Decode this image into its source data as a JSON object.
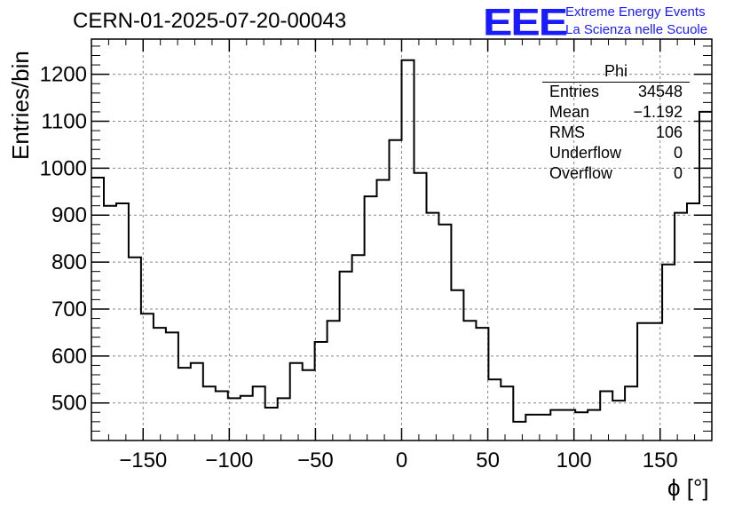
{
  "header": {
    "title": "CERN-01-2025-07-20-00043",
    "logo_text": "EEE",
    "logo_line1": "Extreme Energy Events",
    "logo_line2": "La Scienza nelle Scuole"
  },
  "stats_box": {
    "name": "Phi",
    "rows": [
      {
        "key": "Entries",
        "value": "34548"
      },
      {
        "key": "Mean",
        "value": "−1.192"
      },
      {
        "key": "RMS",
        "value": "106"
      },
      {
        "key": "Underflow",
        "value": "0"
      },
      {
        "key": "Overflow",
        "value": "0"
      }
    ]
  },
  "chart_data": {
    "type": "histogram",
    "title": "CERN-01-2025-07-20-00043",
    "xlabel": "ϕ [°]",
    "ylabel": "Entries/bin",
    "xlim": [
      -180,
      180
    ],
    "ylim": [
      420,
      1275
    ],
    "bin_width": 7.2,
    "x_ticks": [
      -150,
      -100,
      -50,
      0,
      50,
      100,
      150
    ],
    "x_tick_labels": [
      "−150",
      "−100",
      "−50",
      "0",
      "50",
      "100",
      "150"
    ],
    "y_ticks": [
      500,
      600,
      700,
      800,
      900,
      1000,
      1100,
      1200
    ],
    "y_tick_labels": [
      "500",
      "600",
      "700",
      "800",
      "900",
      "1000",
      "1100",
      "1200"
    ],
    "grid": true,
    "values": [
      980,
      920,
      925,
      810,
      690,
      660,
      650,
      575,
      585,
      535,
      525,
      510,
      515,
      535,
      490,
      510,
      585,
      570,
      630,
      675,
      780,
      815,
      940,
      975,
      1060,
      1230,
      990,
      905,
      880,
      740,
      675,
      660,
      550,
      535,
      460,
      475,
      475,
      485,
      485,
      480,
      485,
      525,
      505,
      535,
      670,
      670,
      795,
      905,
      925,
      1120
    ]
  }
}
